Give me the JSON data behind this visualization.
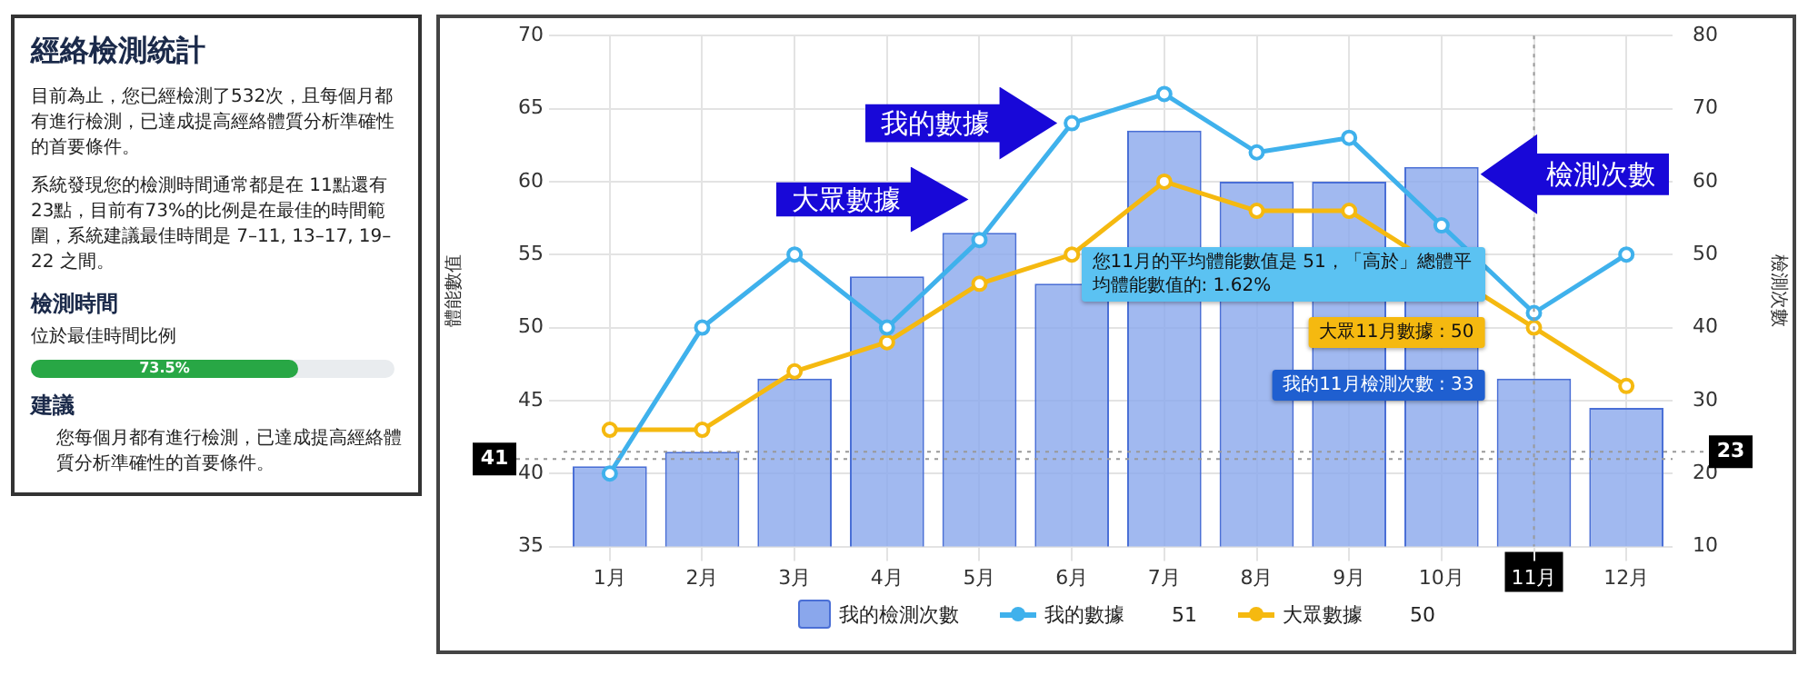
{
  "chart_data": [
    {
      "type": "other",
      "title": "經絡檢測統計",
      "annotations": [
        "目前為止，您已經檢測了532次，且每個月都有進行檢測，已達成提高經絡體質分析準確性的首要條件。",
        "系統發現您的檢測時間通常都是在 11點還有23點，目前有73%的比例是在最佳的時間範圍，系統建議最佳時間是 7–11, 13–17, 19–22 之間。",
        "檢測時間",
        "位於最佳時間比例",
        "建議",
        "您每個月都有進行檢測，已達成提高經絡體質分析準確性的首要條件。"
      ],
      "values": [
        73.5
      ],
      "value_labels": [
        "73.5%"
      ],
      "color": "#28a745"
    },
    {
      "type": "bar",
      "ylabel": "體能數值",
      "y2label": "檢測次數",
      "categories": [
        "1月",
        "2月",
        "3月",
        "4月",
        "5月",
        "6月",
        "7月",
        "8月",
        "9月",
        "10月",
        "11月",
        "12月"
      ],
      "series": [
        {
          "name": "我的檢測次數",
          "type": "bar",
          "axis": "y2",
          "color": "#8aa7ec",
          "values": [
            21,
            23,
            33,
            47,
            53,
            46,
            67,
            60,
            60,
            62,
            33,
            29
          ]
        },
        {
          "name": "我的數據",
          "type": "line",
          "color": "#3fb1ec",
          "values": [
            40,
            50,
            55,
            50,
            56,
            64,
            66,
            62,
            63,
            57,
            51,
            55
          ]
        },
        {
          "name": "大眾數據",
          "type": "line",
          "color": "#f5b910",
          "values": [
            43,
            43,
            47,
            49,
            53,
            55,
            60,
            58,
            58,
            null,
            50,
            46
          ]
        }
      ],
      "ylim": [
        35,
        70
      ],
      "yticks": [
        35,
        40,
        45,
        50,
        55,
        60,
        65,
        70
      ],
      "y2lim": [
        10,
        80
      ],
      "y2ticks": [
        10,
        20,
        30,
        40,
        50,
        60,
        70,
        80
      ],
      "grid": true,
      "legend": "bottom",
      "marker": "circle",
      "line_style": "solid",
      "ref_lines": [
        {
          "axis": "y",
          "value": 41,
          "label": "41",
          "line_style": "dotted"
        },
        {
          "axis": "y2",
          "value": 23,
          "label": "23",
          "line_style": "dotted"
        },
        {
          "axis": "x",
          "value": "11月",
          "line_style": "dotted"
        }
      ],
      "annotations": [
        "我的數據",
        "大眾數據",
        "檢測次數",
        "您11月的平均體能數值是 51，「高於」總體平均體能數值的: 1.62%",
        "大眾11月數據 : 50",
        "我的11月檢測次數 : 33",
        "51",
        "50"
      ]
    }
  ]
}
